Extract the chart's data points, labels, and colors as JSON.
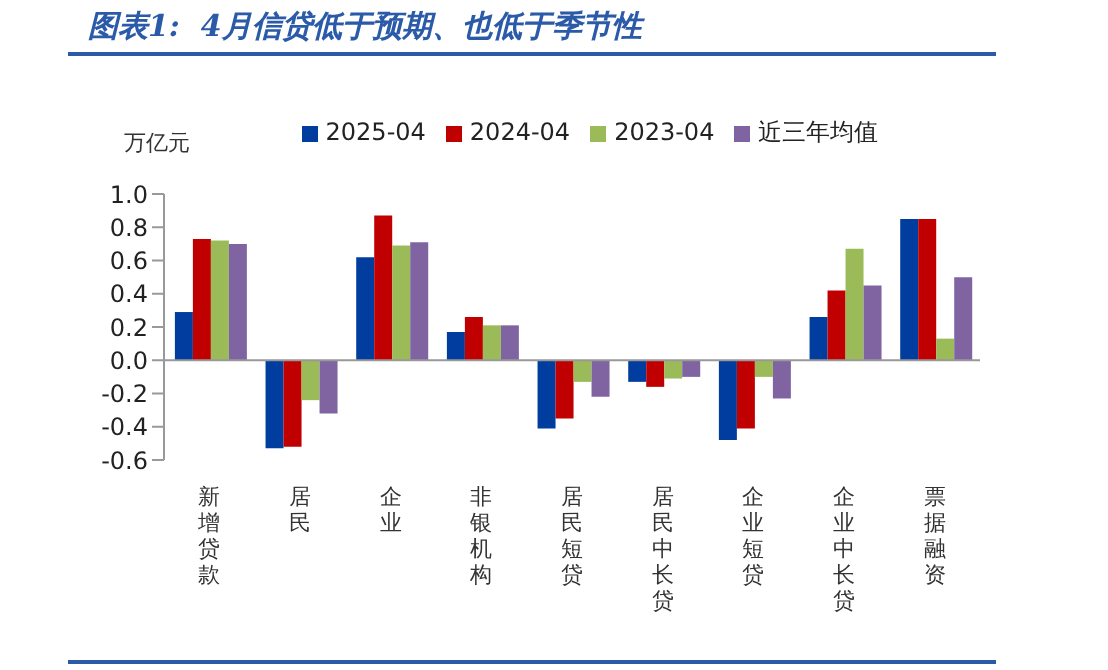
{
  "chart_data": {
    "type": "bar",
    "title": "图表1:  4月信贷低于预期、也低于季节性",
    "ylabel": "万亿元",
    "categories": [
      "新增贷款",
      "居民",
      "企业",
      "非银机构",
      "居民短贷",
      "居民中长贷",
      "企业短贷",
      "企业中长贷",
      "票据融资"
    ],
    "series": [
      {
        "name": "2025-04",
        "color": "#003d9e",
        "values": [
          0.29,
          -0.53,
          0.62,
          0.17,
          -0.41,
          -0.13,
          -0.48,
          0.26,
          0.85
        ]
      },
      {
        "name": "2024-04",
        "color": "#c00000",
        "values": [
          0.73,
          -0.52,
          0.87,
          0.26,
          -0.35,
          -0.16,
          -0.41,
          0.42,
          0.85
        ]
      },
      {
        "name": "2023-04",
        "color": "#9bbb59",
        "values": [
          0.72,
          -0.24,
          0.69,
          0.21,
          -0.13,
          -0.11,
          -0.1,
          0.67,
          0.13
        ]
      },
      {
        "name": "近三年均值",
        "color": "#8064a2",
        "values": [
          0.7,
          -0.32,
          0.71,
          0.21,
          -0.22,
          -0.1,
          -0.23,
          0.45,
          0.5
        ]
      }
    ],
    "ylim": [
      -0.6,
      1.0
    ],
    "yticks": [
      {
        "value": -0.6,
        "label": "-0.6"
      },
      {
        "value": -0.4,
        "label": "-0.4"
      },
      {
        "value": -0.2,
        "label": "-0.2"
      },
      {
        "value": 0,
        "label": "0.0"
      },
      {
        "value": 0.2,
        "label": "0.2"
      },
      {
        "value": 0.4,
        "label": "0.4"
      },
      {
        "value": 0.6,
        "label": "0.6"
      },
      {
        "value": 0.8,
        "label": "0.8"
      },
      {
        "value": 1.0,
        "label": "1.0"
      }
    ],
    "legend": "top"
  }
}
